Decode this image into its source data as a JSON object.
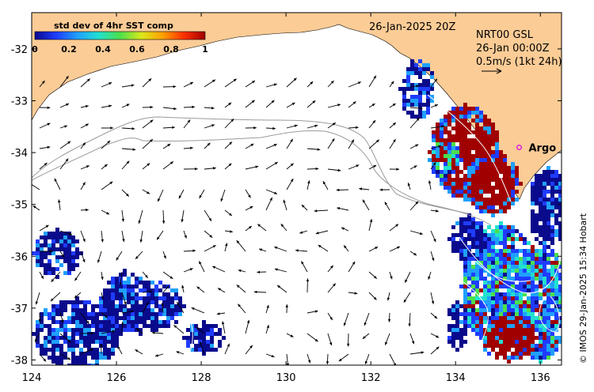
{
  "chart_data": {
    "type": "heatmap",
    "title": "std dev of 4hr SST comp",
    "x_range": [
      124,
      136.5
    ],
    "y_range": [
      -38.1,
      -31.3
    ],
    "x_ticks": [
      "124",
      "126",
      "128",
      "130",
      "132",
      "134",
      "136"
    ],
    "y_ticks": [
      "-32",
      "-33",
      "-34",
      "-35",
      "-36",
      "-37",
      "-38"
    ],
    "colorbar": {
      "min": 0,
      "max": 1,
      "ticks": [
        "0",
        "0.2",
        "0.4",
        "0.6",
        "0.8",
        "1"
      ],
      "colors": [
        "#0a0a8c",
        "#1f3cff",
        "#1fa0ff",
        "#22e0d0",
        "#4ce04c",
        "#d8e81a",
        "#ffa000",
        "#ff3000",
        "#a00000"
      ]
    },
    "land_color": "#fccc96",
    "date_label": "26-Jan-2025 20Z",
    "current_info": {
      "line1": "NRT00 GSL",
      "line2": "26-Jan 00:00Z",
      "line3": "0.5m/s (1kt 24h)"
    },
    "argo": {
      "label": "Argo",
      "lon": 135.5,
      "lat": -33.9,
      "color": "#e020e0"
    },
    "copyright": "© IMOS 29-Jan-2025 15:34 Hobart"
  }
}
